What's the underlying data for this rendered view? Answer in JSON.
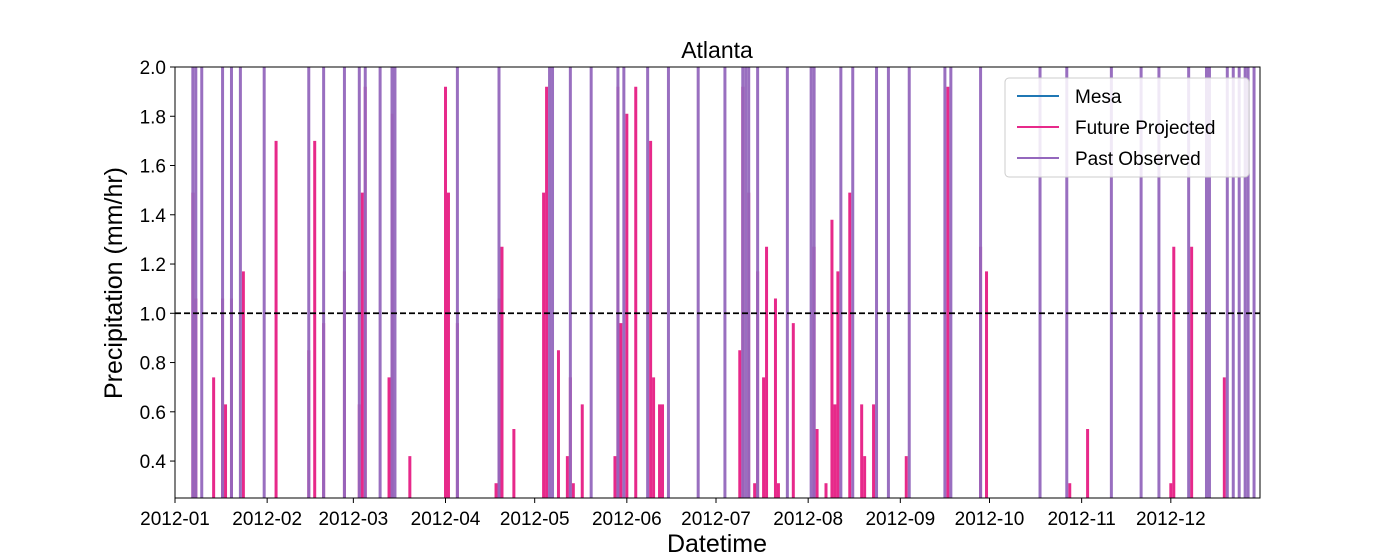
{
  "chart_data": {
    "type": "line",
    "title": "Atlanta",
    "xlabel": "Datetime",
    "ylabel": "Precipitation (mm/hr)",
    "ylim": [
      0.25,
      2.0
    ],
    "xlim": [
      "2012-01-01",
      "2012-12-31"
    ],
    "x_ticks": [
      "2012-01",
      "2012-02",
      "2012-03",
      "2012-04",
      "2012-05",
      "2012-06",
      "2012-07",
      "2012-08",
      "2012-09",
      "2012-10",
      "2012-11",
      "2012-12"
    ],
    "y_ticks": [
      "0.4",
      "0.6",
      "0.8",
      "1.0",
      "1.2",
      "1.4",
      "1.6",
      "1.8",
      "2.0"
    ],
    "y_tick_values": [
      0.4,
      0.6,
      0.8,
      1.0,
      1.2,
      1.4,
      1.6,
      1.8,
      2.0
    ],
    "threshold": {
      "value": 1.0,
      "style": "dashed",
      "color": "#000000"
    },
    "legend": {
      "placement": "top-right"
    },
    "grid": false,
    "series": [
      {
        "name": "Mesa",
        "color": "#1f77b4",
        "spikes": []
      },
      {
        "name": "Future Projected",
        "color": "#e7298a",
        "spikes": [
          [
            "2012-01-07",
            1.49
          ],
          [
            "2012-01-08",
            1.06
          ],
          [
            "2012-01-14",
            0.74
          ],
          [
            "2012-01-17",
            1.06
          ],
          [
            "2012-01-18",
            0.63
          ],
          [
            "2012-01-20",
            1.06
          ],
          [
            "2012-01-24",
            1.17
          ],
          [
            "2012-02-04",
            1.7
          ],
          [
            "2012-02-15",
            0.85
          ],
          [
            "2012-02-17",
            1.7
          ],
          [
            "2012-02-20",
            0.96
          ],
          [
            "2012-02-27",
            1.17
          ],
          [
            "2012-03-03",
            0.63
          ],
          [
            "2012-03-04",
            1.49
          ],
          [
            "2012-03-05",
            1.92
          ],
          [
            "2012-03-13",
            0.74
          ],
          [
            "2012-03-14",
            1.81
          ],
          [
            "2012-03-20",
            0.42
          ],
          [
            "2012-04-01",
            1.92
          ],
          [
            "2012-04-02",
            1.49
          ],
          [
            "2012-04-05",
            0.96
          ],
          [
            "2012-04-18",
            0.31
          ],
          [
            "2012-04-19",
            1.06
          ],
          [
            "2012-04-20",
            1.27
          ],
          [
            "2012-04-24",
            0.53
          ],
          [
            "2012-05-04",
            1.49
          ],
          [
            "2012-05-05",
            1.92
          ],
          [
            "2012-05-09",
            0.85
          ],
          [
            "2012-05-12",
            0.42
          ],
          [
            "2012-05-13",
            0.74
          ],
          [
            "2012-05-14",
            0.31
          ],
          [
            "2012-05-17",
            0.63
          ],
          [
            "2012-05-28",
            0.42
          ],
          [
            "2012-05-29",
            1.92
          ],
          [
            "2012-05-30",
            0.96
          ],
          [
            "2012-06-01",
            1.81
          ],
          [
            "2012-06-04",
            1.92
          ],
          [
            "2012-06-09",
            1.7
          ],
          [
            "2012-06-10",
            0.74
          ],
          [
            "2012-06-12",
            0.63
          ],
          [
            "2012-06-13",
            0.63
          ],
          [
            "2012-07-09",
            0.85
          ],
          [
            "2012-07-10",
            1.92
          ],
          [
            "2012-07-12",
            1.49
          ],
          [
            "2012-07-14",
            0.31
          ],
          [
            "2012-07-15",
            1.17
          ],
          [
            "2012-07-17",
            0.74
          ],
          [
            "2012-07-18",
            1.27
          ],
          [
            "2012-07-21",
            1.06
          ],
          [
            "2012-07-22",
            0.31
          ],
          [
            "2012-07-27",
            0.96
          ],
          [
            "2012-08-03",
            1.27
          ],
          [
            "2012-08-04",
            0.53
          ],
          [
            "2012-08-07",
            0.31
          ],
          [
            "2012-08-09",
            1.38
          ],
          [
            "2012-08-10",
            0.63
          ],
          [
            "2012-08-11",
            1.17
          ],
          [
            "2012-08-15",
            1.49
          ],
          [
            "2012-08-19",
            0.63
          ],
          [
            "2012-08-20",
            0.42
          ],
          [
            "2012-08-23",
            0.63
          ],
          [
            "2012-09-03",
            0.42
          ],
          [
            "2012-09-17",
            1.92
          ],
          [
            "2012-09-28",
            1.27
          ],
          [
            "2012-09-30",
            1.17
          ],
          [
            "2012-10-28",
            0.31
          ],
          [
            "2012-11-03",
            0.53
          ],
          [
            "2012-12-01",
            0.31
          ],
          [
            "2012-12-02",
            1.27
          ],
          [
            "2012-12-08",
            1.27
          ],
          [
            "2012-12-19",
            0.74
          ]
        ]
      },
      {
        "name": "Past Observed",
        "color": "#9467bd",
        "spikes": [
          [
            "2012-01-07",
            2.0
          ],
          [
            "2012-01-08",
            2.0
          ],
          [
            "2012-01-10",
            2.0
          ],
          [
            "2012-01-17",
            2.0
          ],
          [
            "2012-01-20",
            2.0
          ],
          [
            "2012-01-23",
            2.0
          ],
          [
            "2012-01-31",
            2.0
          ],
          [
            "2012-02-15",
            2.0
          ],
          [
            "2012-02-20",
            2.0
          ],
          [
            "2012-02-27",
            2.0
          ],
          [
            "2012-03-03",
            2.0
          ],
          [
            "2012-03-05",
            2.0
          ],
          [
            "2012-03-10",
            2.0
          ],
          [
            "2012-03-14",
            2.0
          ],
          [
            "2012-03-15",
            2.0
          ],
          [
            "2012-04-05",
            2.0
          ],
          [
            "2012-04-19",
            2.0
          ],
          [
            "2012-05-06",
            2.0
          ],
          [
            "2012-05-07",
            2.0
          ],
          [
            "2012-05-13",
            2.0
          ],
          [
            "2012-05-20",
            2.0
          ],
          [
            "2012-05-29",
            2.0
          ],
          [
            "2012-05-31",
            2.0
          ],
          [
            "2012-06-08",
            2.0
          ],
          [
            "2012-06-15",
            2.0
          ],
          [
            "2012-06-25",
            2.0
          ],
          [
            "2012-07-04",
            2.0
          ],
          [
            "2012-07-10",
            2.0
          ],
          [
            "2012-07-11",
            2.0
          ],
          [
            "2012-07-12",
            2.0
          ],
          [
            "2012-07-15",
            2.0
          ],
          [
            "2012-07-25",
            2.0
          ],
          [
            "2012-08-02",
            2.0
          ],
          [
            "2012-08-03",
            2.0
          ],
          [
            "2012-08-12",
            2.0
          ],
          [
            "2012-08-16",
            2.0
          ],
          [
            "2012-08-24",
            2.0
          ],
          [
            "2012-08-28",
            2.0
          ],
          [
            "2012-09-04",
            2.0
          ],
          [
            "2012-09-16",
            2.0
          ],
          [
            "2012-09-18",
            2.0
          ],
          [
            "2012-09-28",
            2.0
          ],
          [
            "2012-10-18",
            2.0
          ],
          [
            "2012-10-27",
            2.0
          ],
          [
            "2012-11-11",
            2.0
          ],
          [
            "2012-11-21",
            2.0
          ],
          [
            "2012-11-27",
            2.0
          ],
          [
            "2012-12-07",
            2.0
          ],
          [
            "2012-12-13",
            2.0
          ],
          [
            "2012-12-14",
            2.0
          ],
          [
            "2012-12-20",
            2.0
          ],
          [
            "2012-12-22",
            2.0
          ],
          [
            "2012-12-24",
            2.0
          ],
          [
            "2012-12-26",
            2.0
          ],
          [
            "2012-12-27",
            2.0
          ],
          [
            "2012-12-29",
            2.0
          ]
        ]
      }
    ]
  }
}
